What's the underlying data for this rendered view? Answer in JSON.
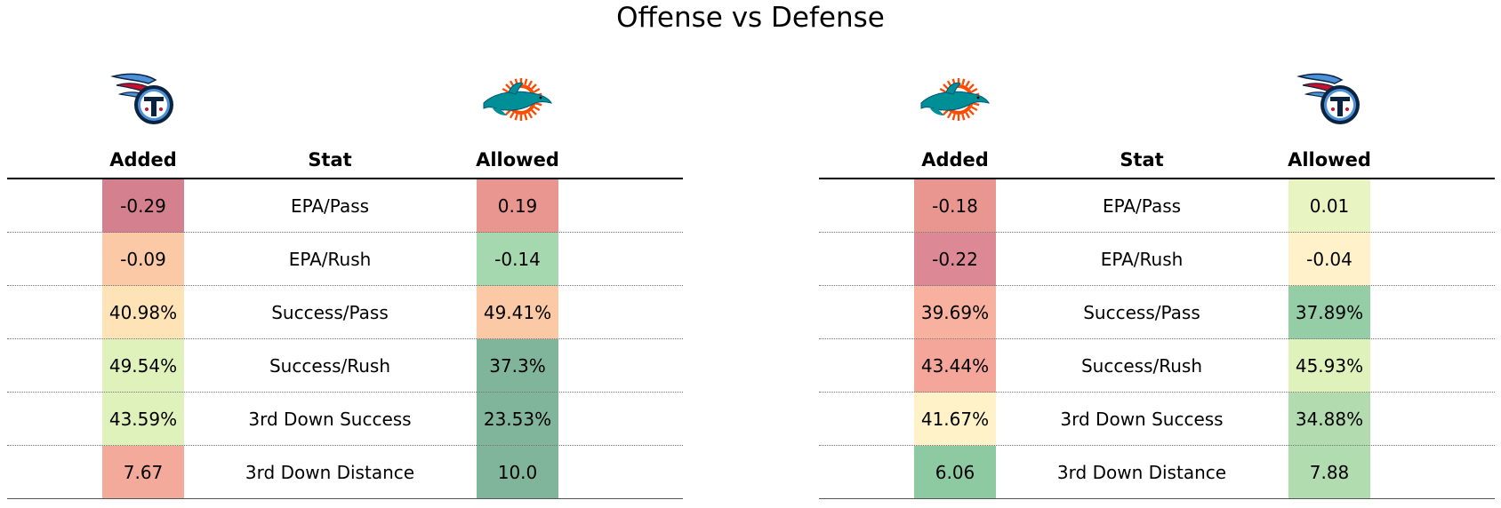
{
  "title": "Offense vs Defense",
  "chart_data": {
    "type": "table",
    "title": "Offense vs Defense",
    "columns": [
      "Added",
      "Stat",
      "Allowed"
    ],
    "tables": [
      {
        "offense_logo": "titans-logo",
        "defense_logo": "dolphins-logo",
        "headers": {
          "added": "Added",
          "stat": "Stat",
          "allowed": "Allowed"
        },
        "rows": [
          {
            "added": "-0.29",
            "stat": "EPA/Pass",
            "allowed": "0.19",
            "added_color": "#d4808f",
            "allowed_color": "#ea9690"
          },
          {
            "added": "-0.09",
            "stat": "EPA/Rush",
            "allowed": "-0.14",
            "added_color": "#fbc9a6",
            "allowed_color": "#a5d8ae"
          },
          {
            "added": "40.98%",
            "stat": "Success/Pass",
            "allowed": "49.41%",
            "added_color": "#fee3b6",
            "allowed_color": "#fbc9a6"
          },
          {
            "added": "49.54%",
            "stat": "Success/Rush",
            "allowed": "37.3%",
            "added_color": "#e0f2bb",
            "allowed_color": "#80b59c"
          },
          {
            "added": "43.59%",
            "stat": "3rd Down Success",
            "allowed": "23.53%",
            "added_color": "#e0f2bb",
            "allowed_color": "#80b59c"
          },
          {
            "added": "7.67",
            "stat": "3rd Down Distance",
            "allowed": "10.0",
            "added_color": "#f4aa9b",
            "allowed_color": "#80b59c"
          }
        ]
      },
      {
        "offense_logo": "dolphins-logo",
        "defense_logo": "titans-logo",
        "headers": {
          "added": "Added",
          "stat": "Stat",
          "allowed": "Allowed"
        },
        "rows": [
          {
            "added": "-0.18",
            "stat": "EPA/Pass",
            "allowed": "0.01",
            "added_color": "#ea9690",
            "allowed_color": "#e8f5c3"
          },
          {
            "added": "-0.22",
            "stat": "EPA/Rush",
            "allowed": "-0.04",
            "added_color": "#dc8995",
            "allowed_color": "#fff2cb"
          },
          {
            "added": "39.69%",
            "stat": "Success/Pass",
            "allowed": "37.89%",
            "added_color": "#f8b19e",
            "allowed_color": "#94cda6"
          },
          {
            "added": "43.44%",
            "stat": "Success/Rush",
            "allowed": "45.93%",
            "added_color": "#f5a69a",
            "allowed_color": "#e0f2bb"
          },
          {
            "added": "41.67%",
            "stat": "3rd Down Success",
            "allowed": "34.88%",
            "added_color": "#fff2c8",
            "allowed_color": "#b2dcb0"
          },
          {
            "added": "6.06",
            "stat": "3rd Down Distance",
            "allowed": "7.88",
            "added_color": "#8dc9a1",
            "allowed_color": "#b0dcb0"
          }
        ]
      }
    ]
  }
}
